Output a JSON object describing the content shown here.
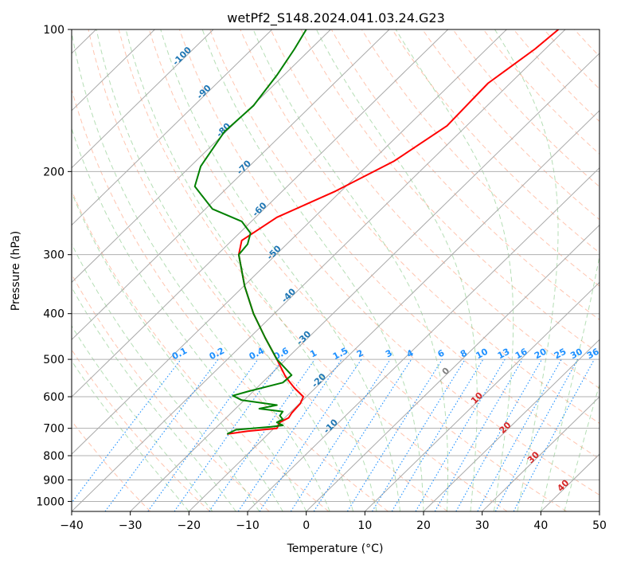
{
  "chart_data": {
    "type": "line",
    "title": "wetPf2_S148.2024.041.03.24.G23",
    "xlabel": "Temperature (°C)",
    "ylabel": "Pressure (hPa)",
    "xlim": [
      -40,
      50
    ],
    "ylim": [
      1050,
      100
    ],
    "y_scale": "log",
    "x_ticks": [
      -40,
      -30,
      -20,
      -10,
      0,
      10,
      20,
      30,
      40,
      50
    ],
    "y_ticks": [
      1000,
      900,
      800,
      700,
      600,
      500,
      400,
      300,
      200,
      100
    ],
    "grid": true,
    "background_lines": {
      "isotherms_skewed": true,
      "dry_adiabats": true,
      "moist_adiabats": true,
      "mixing_ratio_lines": true
    },
    "mixing_ratio_labels": [
      "0.1",
      "0.2",
      "0.4",
      "0.6",
      "1",
      "1.5",
      "2",
      "3",
      "4",
      "6",
      "8",
      "10",
      "13",
      "16",
      "20",
      "25",
      "30",
      "36"
    ],
    "isotherm_labels": [
      "-100",
      "-90",
      "-80",
      "-70",
      "-60",
      "-50",
      "-40",
      "-30",
      "-20",
      "-10",
      "0",
      "10",
      "20",
      "30",
      "40"
    ],
    "series": [
      {
        "color": "#ff0000",
        "temperature": [
          [
            -13.5,
            720
          ],
          [
            -10,
            710
          ],
          [
            -5,
            700
          ],
          [
            -4.5,
            680
          ],
          [
            -3,
            665
          ],
          [
            -2.5,
            650
          ],
          [
            -1,
            620
          ],
          [
            -0.5,
            600
          ],
          [
            -2,
            575
          ],
          [
            -3.5,
            545
          ],
          [
            -5,
            500
          ],
          [
            -7,
            450
          ],
          [
            -9,
            400
          ],
          [
            -10.5,
            350
          ],
          [
            -11.5,
            300
          ],
          [
            -11,
            280
          ],
          [
            -5,
            250
          ],
          [
            5,
            220
          ],
          [
            15,
            190
          ],
          [
            24,
            160
          ],
          [
            31,
            130
          ],
          [
            39,
            110
          ],
          [
            43,
            100
          ]
        ]
      },
      {
        "color": "#008000",
        "dewpoint": [
          [
            -13.5,
            720
          ],
          [
            -12,
            705
          ],
          [
            -6,
            695
          ],
          [
            -4,
            690
          ],
          [
            -5,
            680
          ],
          [
            -4,
            670
          ],
          [
            -4.5,
            658
          ],
          [
            -4,
            645
          ],
          [
            -8,
            636
          ],
          [
            -5,
            625
          ],
          [
            -11,
            610
          ],
          [
            -12.5,
            597
          ],
          [
            -10,
            585
          ],
          [
            -4,
            560
          ],
          [
            -2.5,
            540
          ],
          [
            -5,
            500
          ],
          [
            -7,
            450
          ],
          [
            -9,
            400
          ],
          [
            -10.5,
            350
          ],
          [
            -11.5,
            300
          ],
          [
            -10,
            285
          ],
          [
            -9.5,
            270
          ],
          [
            -11,
            255
          ],
          [
            -16,
            240
          ],
          [
            -19,
            215
          ],
          [
            -18,
            195
          ],
          [
            -14,
            165
          ],
          [
            -9,
            145
          ],
          [
            -5,
            125
          ],
          [
            -2,
            110
          ],
          [
            0,
            100
          ]
        ]
      }
    ]
  }
}
